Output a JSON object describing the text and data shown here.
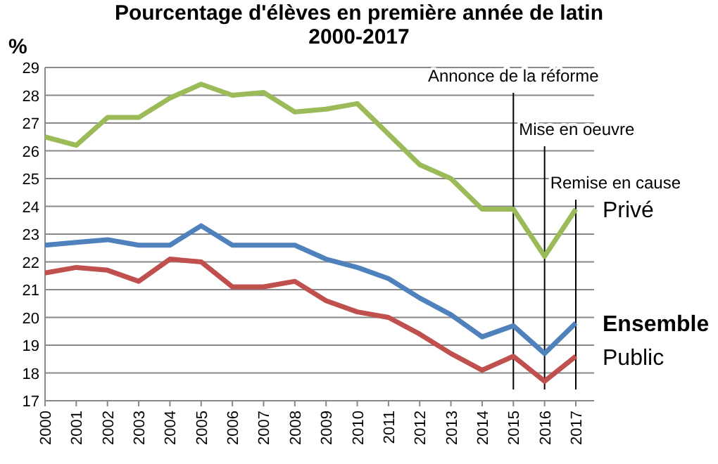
{
  "chart_data": {
    "type": "line",
    "title": "Pourcentage d'élèves en première année de latin\n2000-2017",
    "ylabel": "%",
    "categories": [
      "2000",
      "2001",
      "2002",
      "2003",
      "2004",
      "2005",
      "2006",
      "2007",
      "2008",
      "2009",
      "2010",
      "2011",
      "2012",
      "2013",
      "2014",
      "2015",
      "2016",
      "2017"
    ],
    "series": [
      {
        "name": "Privé",
        "color": "#9bbb59",
        "values": [
          26.5,
          26.2,
          27.2,
          27.2,
          27.9,
          28.4,
          28.0,
          28.1,
          27.4,
          27.5,
          27.7,
          26.6,
          25.5,
          25.0,
          23.9,
          23.9,
          22.2,
          23.9
        ]
      },
      {
        "name": "Ensemble",
        "color": "#4f81bd",
        "values": [
          22.6,
          22.7,
          22.8,
          22.6,
          22.6,
          23.3,
          22.6,
          22.6,
          22.6,
          22.1,
          21.8,
          21.4,
          20.7,
          20.1,
          19.3,
          19.7,
          18.7,
          19.8
        ]
      },
      {
        "name": "Public",
        "color": "#c0504d",
        "values": [
          21.6,
          21.8,
          21.7,
          21.3,
          22.1,
          22.0,
          21.1,
          21.1,
          21.3,
          20.6,
          20.2,
          20.0,
          19.4,
          18.7,
          18.1,
          18.6,
          17.7,
          18.6
        ]
      }
    ],
    "ylim": [
      17,
      29
    ],
    "yticks": [
      17,
      18,
      19,
      20,
      21,
      22,
      23,
      24,
      25,
      26,
      27,
      28,
      29
    ],
    "grid": "y",
    "legend": false,
    "marker": "none",
    "line_style": "solid",
    "ref_lines": [
      {
        "axis": "x",
        "value": "2015",
        "label": "Annonce de la réforme",
        "color": "#000000"
      },
      {
        "axis": "x",
        "value": "2016",
        "label": "Mise en oeuvre",
        "color": "#000000"
      },
      {
        "axis": "x",
        "value": "2017",
        "label": "Remise en cause",
        "color": "#000000"
      }
    ]
  }
}
